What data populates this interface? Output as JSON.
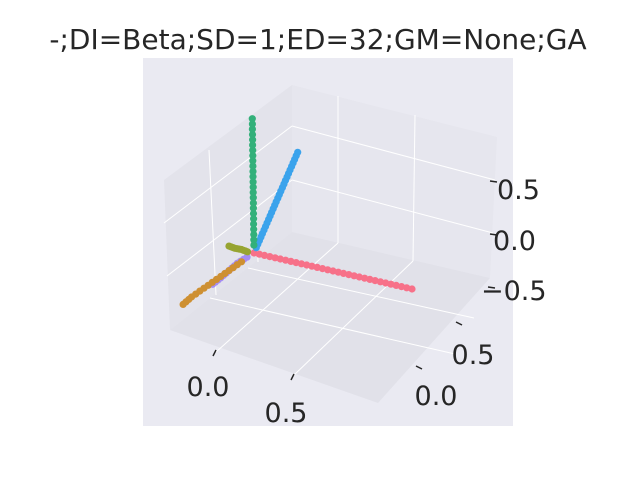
{
  "chart_data": {
    "type": "scatter",
    "projection": "3d",
    "title": "-;DI=Beta;SD=1;ED=32;GM=None;GA",
    "xlabel": "",
    "ylabel": "",
    "zlabel": "",
    "grid": true,
    "legend": "none",
    "x_ticks": [
      "0.0",
      "0.5"
    ],
    "y_ticks": [
      "0.0",
      "0.5"
    ],
    "z_ticks": [
      "0.5",
      "0.0",
      "−0.5"
    ],
    "axis_style": {
      "pane_color": "#eaeaf2",
      "grid_color": "#ffffff"
    },
    "series": [
      {
        "color": "#f77189",
        "points": [
          [
            0.0,
            0.0,
            0.0
          ],
          [
            0.1,
            0.0,
            0.0
          ],
          [
            0.2,
            0.0,
            0.0
          ],
          [
            0.3,
            0.0,
            0.0
          ],
          [
            0.4,
            0.0,
            0.0
          ],
          [
            0.5,
            0.0,
            0.0
          ],
          [
            0.6,
            0.0,
            0.0
          ],
          [
            0.7,
            0.0,
            0.0
          ],
          [
            0.8,
            0.0,
            0.0
          ],
          [
            0.9,
            0.0,
            0.0
          ],
          [
            1.0,
            0.0,
            0.0
          ]
        ]
      },
      {
        "color": "#3ba3ec",
        "points": [
          [
            0.0,
            0.0,
            0.05
          ],
          [
            0.0,
            0.0,
            0.15
          ],
          [
            0.0,
            0.0,
            0.25
          ],
          [
            0.0,
            0.0,
            0.35
          ],
          [
            0.0,
            0.0,
            0.45
          ],
          [
            0.0,
            0.0,
            0.55
          ],
          [
            0.0,
            0.0,
            0.65
          ],
          [
            0.0,
            0.0,
            0.75
          ],
          [
            0.0,
            0.0,
            0.85
          ],
          [
            0.0,
            0.0,
            0.95
          ]
        ]
      },
      {
        "color": "#33b07a",
        "points": [
          [
            0.0,
            0.05,
            0.05
          ],
          [
            0.0,
            0.15,
            0.15
          ],
          [
            0.0,
            0.25,
            0.25
          ],
          [
            0.0,
            0.35,
            0.35
          ],
          [
            0.0,
            0.45,
            0.45
          ],
          [
            0.0,
            0.55,
            0.55
          ],
          [
            0.0,
            0.65,
            0.65
          ],
          [
            0.0,
            0.75,
            0.75
          ],
          [
            0.0,
            0.85,
            0.85
          ]
        ]
      },
      {
        "color": "#a48cf4",
        "points": [
          [
            -0.03,
            0.0,
            -0.05
          ],
          [
            -0.07,
            0.0,
            -0.12
          ],
          [
            -0.1,
            0.0,
            -0.2
          ],
          [
            -0.13,
            0.0,
            -0.28
          ],
          [
            -0.16,
            0.0,
            -0.35
          ]
        ]
      },
      {
        "color": "#ce9032",
        "points": [
          [
            -0.05,
            0.0,
            -0.1
          ],
          [
            -0.1,
            0.0,
            -0.2
          ],
          [
            -0.15,
            0.0,
            -0.3
          ],
          [
            -0.2,
            0.0,
            -0.4
          ],
          [
            -0.25,
            0.0,
            -0.5
          ],
          [
            -0.28,
            0.0,
            -0.58
          ]
        ]
      },
      {
        "color": "#97a431",
        "points": [
          [
            -0.02,
            0.05,
            -0.02
          ],
          [
            -0.04,
            0.1,
            -0.03
          ],
          [
            -0.06,
            0.15,
            -0.05
          ],
          [
            -0.08,
            0.2,
            -0.06
          ]
        ]
      }
    ]
  }
}
